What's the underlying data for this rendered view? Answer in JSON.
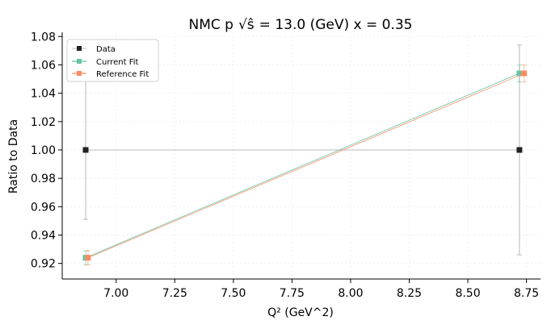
{
  "chart_data": {
    "type": "scatter",
    "title_prefix": "NMC p",
    "title_suffix": "= 13.0 (GeV) x = 0.35",
    "xlabel": "Q² (GeV^2)",
    "ylabel": "Ratio to Data",
    "xlim": [
      6.77,
      8.81
    ],
    "ylim": [
      0.909,
      1.083
    ],
    "xticks": [
      7.0,
      7.25,
      7.5,
      7.75,
      8.0,
      8.25,
      8.5,
      8.75
    ],
    "xtick_labels": [
      "7.00",
      "7.25",
      "7.50",
      "7.75",
      "8.00",
      "8.25",
      "8.50",
      "8.75"
    ],
    "yticks": [
      0.92,
      0.94,
      0.96,
      0.98,
      1.0,
      1.02,
      1.04,
      1.06,
      1.08
    ],
    "ytick_labels": [
      "0.92",
      "0.94",
      "0.96",
      "0.98",
      "1.00",
      "1.02",
      "1.04",
      "1.06",
      "1.08"
    ],
    "grid": true,
    "legend_position": "top-left",
    "series": [
      {
        "name": "Data",
        "color": "#222222",
        "line_color": "#c8c8c8",
        "x": [
          6.87,
          8.72
        ],
        "y": [
          1.0,
          1.0
        ],
        "err": [
          0.049,
          0.074
        ]
      },
      {
        "name": "Current Fit",
        "color": "#66c2a5",
        "line_color": "#66c2a5",
        "x": [
          6.87,
          8.72
        ],
        "y": [
          0.924,
          1.054
        ],
        "err": [
          0.005,
          0.006
        ]
      },
      {
        "name": "Reference Fit",
        "color": "#fc8d62",
        "line_color": "#fc8d62",
        "x": [
          6.88,
          8.74
        ],
        "y": [
          0.924,
          1.054
        ],
        "err": [
          0.005,
          0.006
        ]
      }
    ]
  }
}
